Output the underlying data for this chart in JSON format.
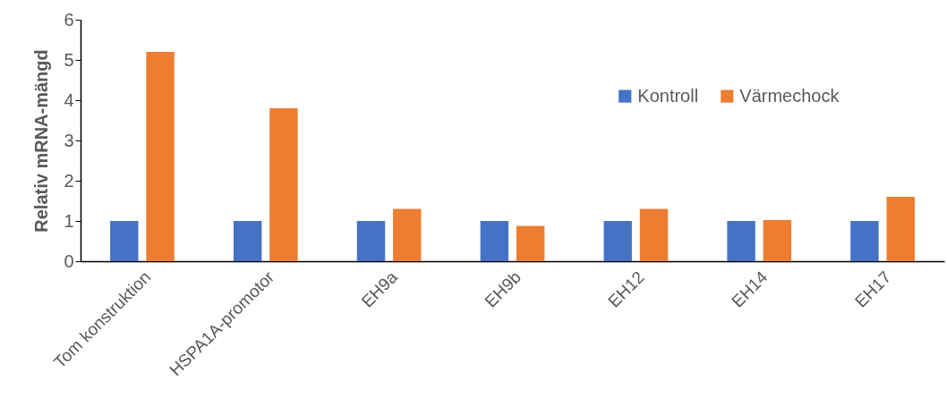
{
  "chart_data": {
    "type": "bar",
    "ylabel": "Relativ mRNA-mängd",
    "categories": [
      "Tom konstruktion",
      "HSPA1A-promotor",
      "EH9a",
      "EH9b",
      "EH12",
      "EH14",
      "EH17"
    ],
    "series": [
      {
        "name": "Kontroll",
        "color": "#4472c4",
        "values": [
          1,
          1,
          1,
          1,
          1,
          1,
          1
        ]
      },
      {
        "name": "Värmechock",
        "color": "#ed7d31",
        "values": [
          5.2,
          3.8,
          1.3,
          0.88,
          1.3,
          1.02,
          1.6
        ]
      }
    ],
    "ylim": [
      0,
      6
    ],
    "yticks": [
      0,
      1,
      2,
      3,
      4,
      5,
      6
    ],
    "grid": false,
    "legend": "top right"
  }
}
